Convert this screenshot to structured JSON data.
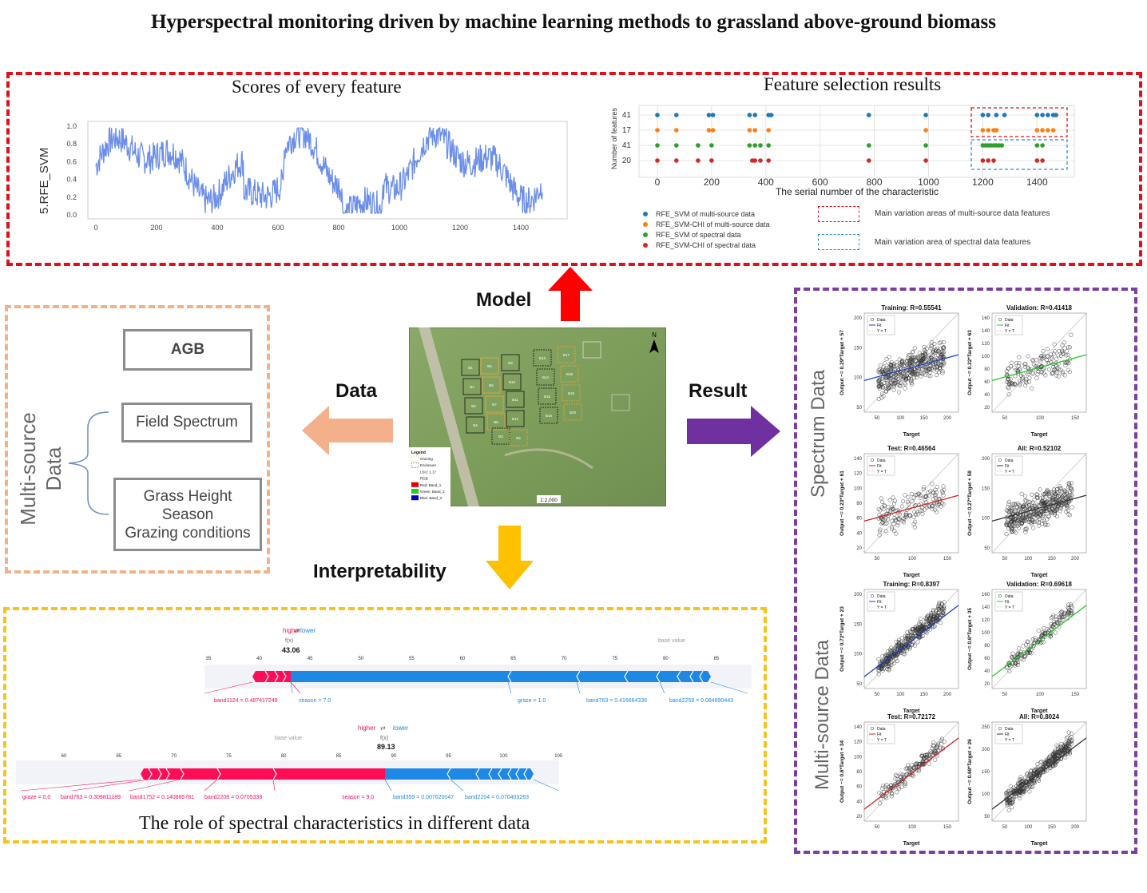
{
  "title": "Hyperspectral monitoring driven by machine learning methods to grassland above-ground biomass",
  "model_panel": {
    "left_title": "Scores of every feature",
    "left_ylabel": "5.RFE_SVM",
    "left_yticks": [
      "1.0",
      "0.8",
      "0.6",
      "0.4",
      "0.2",
      "0.0"
    ],
    "left_xticks": [
      "0",
      "200",
      "400",
      "600",
      "800",
      "1000",
      "1200",
      "1400"
    ],
    "right_title": "Feature selection results",
    "right_ylabel": "Number of features",
    "right_yticks": [
      "41",
      "17",
      "41",
      "20"
    ],
    "right_xticks": [
      "0",
      "200",
      "400",
      "600",
      "800",
      "1000",
      "1200",
      "1400"
    ],
    "right_xlabel": "The serial number of the characteristic",
    "legend": [
      "RFE_SVM of multi-source data",
      "RFE_SVM-CHI of multi-source data",
      "RFE_SVM of  spectral data",
      "RFE_SVM-CHI of  spectral data"
    ],
    "legend_colors": [
      "#1f77b4",
      "#ff7f0e",
      "#2ca02c",
      "#d62728"
    ],
    "area_legend": [
      "Main variation areas of multi-source data features",
      "Main variation area of spectral data features"
    ]
  },
  "data_panel": {
    "agb": "AGB",
    "field_spectrum": "Field Spectrum",
    "extra_lines": [
      "Grass Height",
      "Season",
      "Grazing conditions"
    ],
    "side_label_1": "Multi-source",
    "side_label_2": "Data"
  },
  "map": {
    "legend_title": "Legend",
    "legend_items": [
      "Grazing",
      "Enclosure",
      "LSU: 1.1?",
      "RGB",
      "Red:   Band_1",
      "Green: Band_2",
      "Blue:   Band_3"
    ],
    "scale": "1:2,000",
    "north": "N",
    "plots": [
      "B1",
      "B5",
      "B9",
      "B2",
      "B6",
      "B10",
      "B3",
      "B7",
      "B11",
      "B4",
      "B8",
      "B12",
      "B13",
      "B17",
      "B14",
      "B18",
      "B15",
      "B19",
      "B16",
      "B20",
      "B3",
      "B6"
    ]
  },
  "arrows": {
    "model": "Model",
    "data": "Data",
    "result": "Result",
    "interpretability": "Interpretability"
  },
  "interpret_panel": {
    "caption": "The role of spectral characteristics in different data",
    "plot1": {
      "higher": "higher",
      "lower": "lower",
      "fx": "f(x)",
      "value": "43.06",
      "base_value": "base value",
      "ticks": [
        "35",
        "40",
        "45",
        "50",
        "55",
        "60",
        "65",
        "70",
        "75",
        "80",
        "85"
      ],
      "labels": [
        "band1124 = 0.487417249",
        "season = 7.0",
        "graze = 1.0",
        "band763 = 0.416664336",
        "band2259 = 0.084890443"
      ]
    },
    "plot2": {
      "higher": "higher",
      "lower": "lower",
      "fx": "f(x)",
      "value": "89.13",
      "base_value": "base value",
      "ticks": [
        "60",
        "65",
        "70",
        "75",
        "80",
        "85",
        "90",
        "95",
        "100",
        "105"
      ],
      "labels": [
        "graze = 0.0",
        "band763 = 0.309811189",
        "band1752 = 0.140885781",
        "band2208 = 0.0705338",
        "season = 9.0",
        "band359 = 0.007620047",
        "band2204 = 0.070403263"
      ]
    }
  },
  "result_panel": {
    "label_spectrum": "Spectrum Data",
    "label_multi": "Multi-source  Data",
    "legend": [
      "Data",
      "Fit",
      "Y = T"
    ],
    "xlabel": "Target",
    "plots": [
      {
        "title": "Training: R=0.55541",
        "ylabel": "Output ~= 0.29*Target + 57",
        "fit_color": "#1f3fd0",
        "slope": 0.29,
        "intercept": 57,
        "xticks": [
          "50",
          "100",
          "150",
          "200"
        ],
        "yticks": [
          "200",
          "150",
          "100",
          "50"
        ]
      },
      {
        "title": "Validation: R=0.41418",
        "ylabel": "Output ~= 0.22*Target + 63",
        "fit_color": "#22cc22",
        "slope": 0.22,
        "intercept": 63,
        "xticks": [
          "50",
          "100",
          "150"
        ],
        "yticks": [
          "160",
          "140",
          "120",
          "100",
          "80",
          "60",
          "40",
          "20"
        ]
      },
      {
        "title": "Test: R=0.46564",
        "ylabel": "Output ~= 0.23*Target + 61",
        "fit_color": "#d02020",
        "slope": 0.23,
        "intercept": 61,
        "xticks": [
          "50",
          "100",
          "150"
        ],
        "yticks": [
          "140",
          "120",
          "100",
          "80",
          "60",
          "40",
          "20"
        ]
      },
      {
        "title": "All: R=0.52102",
        "ylabel": "Output ~= 0.27*Target + 58",
        "fit_color": "#333333",
        "slope": 0.27,
        "intercept": 58,
        "xticks": [
          "50",
          "100",
          "150",
          "200"
        ],
        "yticks": [
          "200",
          "150",
          "100",
          "50"
        ]
      },
      {
        "title": "Training: R=0.8397",
        "ylabel": "Output ~= 0.72*Target + 23",
        "fit_color": "#1f3fd0",
        "slope": 0.72,
        "intercept": 23,
        "xticks": [
          "50",
          "100",
          "150",
          "200"
        ],
        "yticks": [
          "200",
          "150",
          "100",
          "50"
        ]
      },
      {
        "title": "Validation: R=0.69618",
        "ylabel": "Output ~= 0.6*Target + 35",
        "fit_color": "#22cc22",
        "slope": 0.6,
        "intercept": 35,
        "xticks": [
          "50",
          "100",
          "150"
        ],
        "yticks": [
          "160",
          "140",
          "120",
          "100",
          "80",
          "60",
          "40",
          "20"
        ]
      },
      {
        "title": "Test: R=0.72172",
        "ylabel": "Output ~= 0.6*Target + 34",
        "fit_color": "#d02020",
        "slope": 0.6,
        "intercept": 34,
        "xticks": [
          "50",
          "100",
          "150"
        ],
        "yticks": [
          "140",
          "120",
          "100",
          "80",
          "60",
          "40",
          "20"
        ]
      },
      {
        "title": "All: R=0.8024",
        "ylabel": "Output ~= 0.68*Target + 26",
        "fit_color": "#333333",
        "slope": 0.68,
        "intercept": 26,
        "xticks": [
          "50",
          "100",
          "150",
          "200"
        ],
        "yticks": [
          "250",
          "200",
          "150",
          "100",
          "50"
        ]
      }
    ]
  }
}
